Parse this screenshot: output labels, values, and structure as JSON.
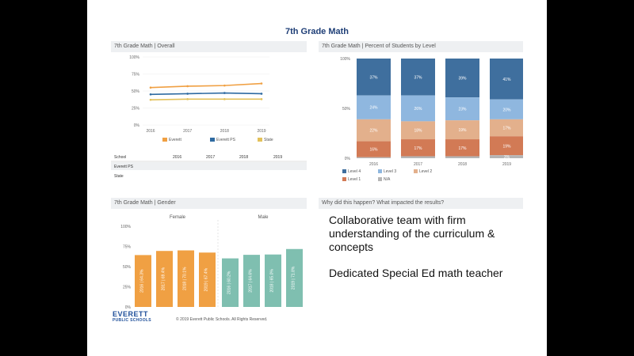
{
  "slide_title": "7th Grade Math",
  "panels": {
    "overall_title": "7th Grade Math | Overall",
    "level_title": "7th Grade Math | Percent of Students by Level",
    "gender_title": "7th Grade Math | Gender",
    "why_title": "Why did this happen? What impacted the results?"
  },
  "free_text": [
    "Collaborative team with firm understanding of the curriculum & concepts",
    "Dedicated Special Ed math teacher"
  ],
  "logo": {
    "line1": "EVERETT",
    "line2": "PUBLIC SCHOOLS"
  },
  "footer": {
    "copyright": "© 2019 Everett Public Schools. All Rights Reserved.",
    "right": ""
  },
  "colors": {
    "orange": "#f0a043",
    "blue": "#2e6aa1",
    "yellow": "#e3c15a",
    "teal": "#7fbfb0",
    "level4": "#3f6f9e",
    "level3": "#8fb7df",
    "level2": "#e3b08c",
    "level1": "#d27a55",
    "na": "#b5b5b5"
  },
  "chart_data": [
    {
      "type": "line",
      "title": "",
      "x": [
        "2016",
        "2017",
        "2018",
        "2019"
      ],
      "ylim": [
        0,
        100
      ],
      "yticks": [
        "0%",
        "25%",
        "50%",
        "75%",
        "100%"
      ],
      "series": [
        {
          "name": "Everett",
          "values": [
            55,
            57,
            58,
            61
          ],
          "color": "#f0a043"
        },
        {
          "name": "Everett PS",
          "values": [
            45,
            46,
            47,
            46
          ],
          "color": "#2e6aa1"
        },
        {
          "name": "State",
          "values": [
            37,
            38,
            38,
            38
          ],
          "color": "#e3c15a"
        }
      ],
      "table": {
        "header": [
          "School",
          "2016",
          "2017",
          "2018",
          "2019"
        ],
        "rows": [
          [
            "Everett PS",
            "",
            "",
            "",
            ""
          ],
          [
            "State",
            "",
            "",
            "",
            ""
          ]
        ]
      }
    },
    {
      "type": "bar",
      "stacked": true,
      "title": "",
      "categories": [
        "2016",
        "2017",
        "2018",
        "2019"
      ],
      "yticks": [
        "0%",
        "50%",
        "100%"
      ],
      "series": [
        {
          "name": "Level 4",
          "values": [
            37,
            37,
            39,
            41
          ],
          "color": "#3f6f9e"
        },
        {
          "name": "Level 3",
          "values": [
            24,
            26,
            23,
            20
          ],
          "color": "#8fb7df"
        },
        {
          "name": "Level 2",
          "values": [
            22,
            18,
            19,
            17
          ],
          "color": "#e3b08c"
        },
        {
          "name": "Level 1",
          "values": [
            16,
            17,
            17,
            19
          ],
          "color": "#d27a55"
        },
        {
          "name": "N/A",
          "values": [
            1,
            2,
            2,
            3
          ],
          "color": "#b5b5b5"
        }
      ],
      "legend": [
        "Level 4",
        "Level 3",
        "Level 2",
        "Level 1",
        "N/A"
      ]
    },
    {
      "type": "bar",
      "title": "",
      "groups": [
        "Female",
        "Male"
      ],
      "categories": [
        "2016",
        "2017",
        "2018",
        "2019",
        "2016",
        "2017",
        "2018",
        "2019"
      ],
      "values": [
        64.3,
        69.4,
        70.1,
        67.4,
        60.2,
        64.6,
        65.0,
        71.8
      ],
      "bar_labels": [
        "2016 | 64.3%",
        "2017 | 69.4%",
        "2018 | 70.1%",
        "2019 | 67.4%",
        "2016 | 60.2%",
        "2017 | 64.6%",
        "2018 | 65.0%",
        "2019 | 71.8%"
      ],
      "colors": [
        "#f0a043",
        "#f0a043",
        "#f0a043",
        "#f0a043",
        "#7fbfb0",
        "#7fbfb0",
        "#7fbfb0",
        "#7fbfb0"
      ],
      "ylim": [
        0,
        100
      ],
      "yticks": [
        "0%",
        "25%",
        "50%",
        "75%",
        "100%"
      ]
    }
  ]
}
